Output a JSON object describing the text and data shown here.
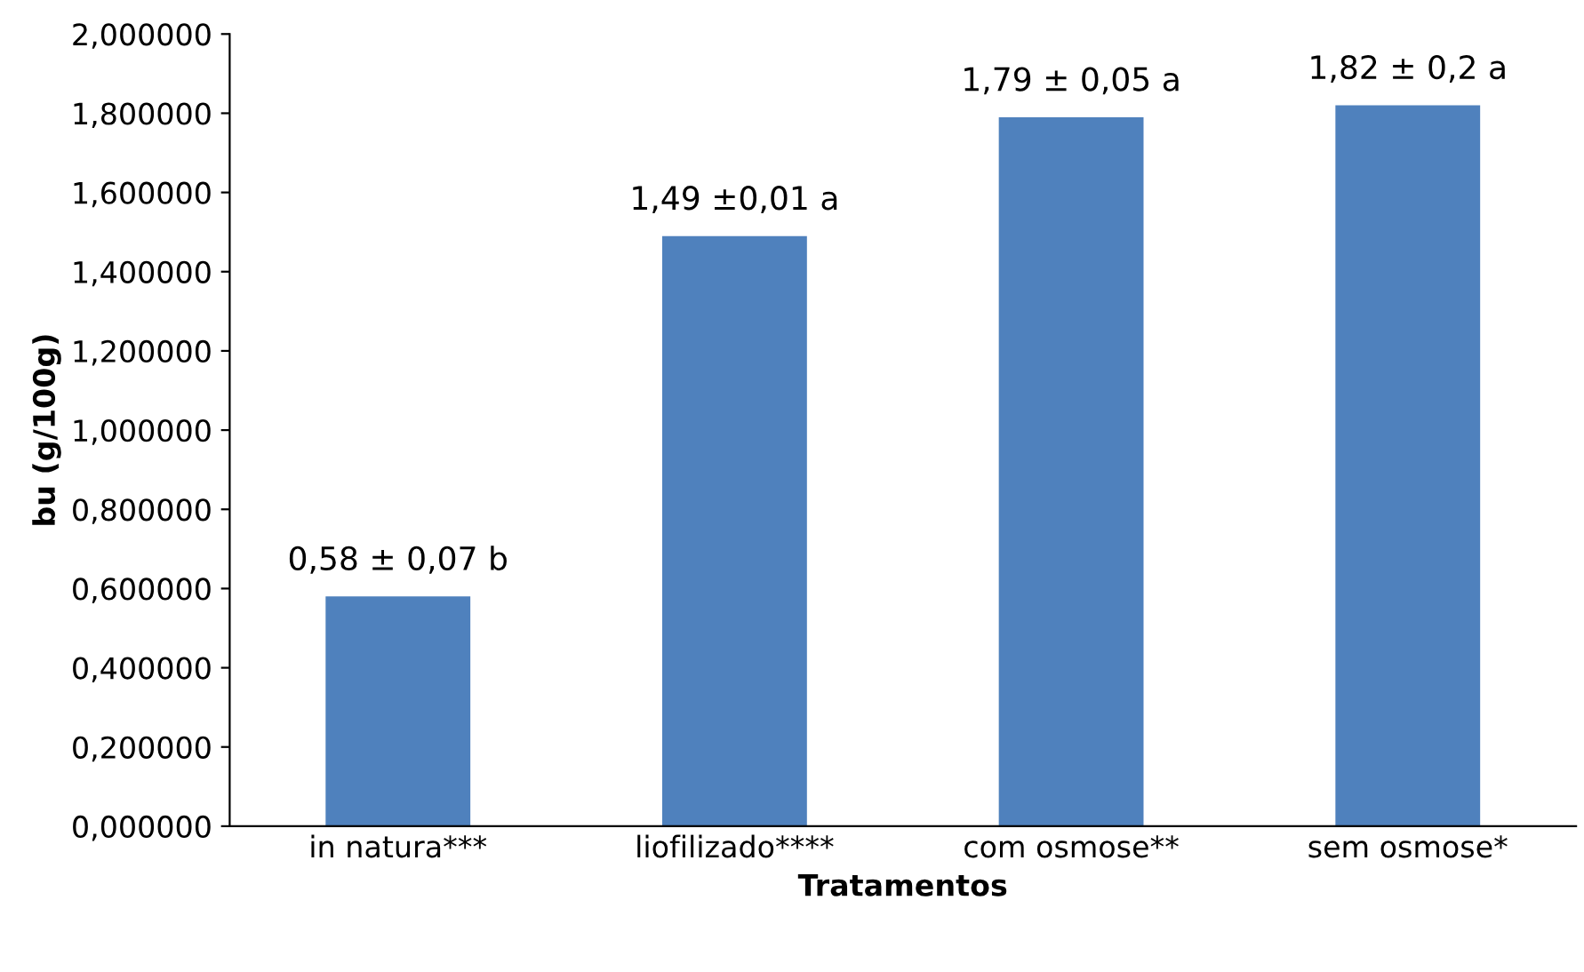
{
  "chart_data": {
    "type": "bar",
    "xlabel": "Tratamentos",
    "ylabel": "bu (g/100g)",
    "categories": [
      "in natura***",
      "liofilizado****",
      "com osmose**",
      "sem osmose*"
    ],
    "values": [
      0.58,
      1.49,
      1.79,
      1.82
    ],
    "value_labels": [
      "0,58 ± 0,07 b",
      "1,49 ±0,01 a",
      "1,79 ± 0,05 a",
      "1,82 ± 0,2 a"
    ],
    "color": "#4f81bd",
    "ylim": [
      0,
      2
    ],
    "yticks": [
      {
        "value": 0,
        "label": "0,000000"
      },
      {
        "value": 0.2,
        "label": "0,200000"
      },
      {
        "value": 0.4,
        "label": "0,400000"
      },
      {
        "value": 0.6,
        "label": "0,600000"
      },
      {
        "value": 0.8,
        "label": "0,800000"
      },
      {
        "value": 1.0,
        "label": "1,000000"
      },
      {
        "value": 1.2,
        "label": "1,200000"
      },
      {
        "value": 1.4,
        "label": "1,400000"
      },
      {
        "value": 1.6,
        "label": "1,600000"
      },
      {
        "value": 1.8,
        "label": "1,800000"
      },
      {
        "value": 2.0,
        "label": "2,000000"
      }
    ],
    "grid": false,
    "legend": false
  }
}
